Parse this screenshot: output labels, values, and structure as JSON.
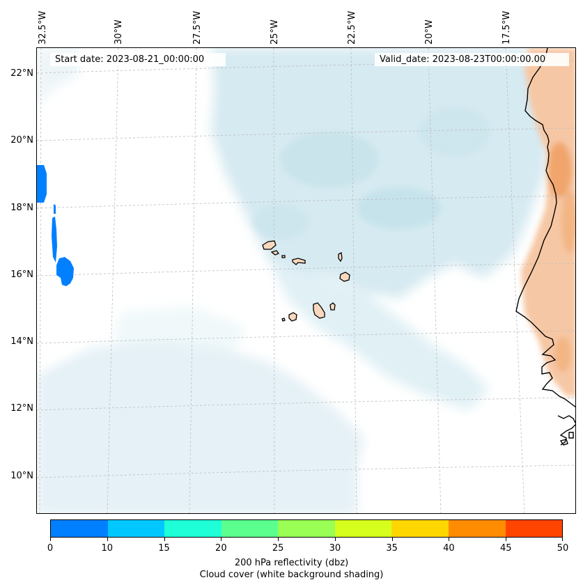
{
  "map": {
    "start_label": "Start date: 2023-08-21_00:00:00",
    "valid_label": "Valid_date: 2023-08-23T00:00:00.00",
    "lon_labels": [
      "32.5°W",
      "30°W",
      "27.5°W",
      "25°W",
      "22.5°W",
      "20°W",
      "17.5°W"
    ],
    "lat_labels": [
      "22°N",
      "20°N",
      "18°N",
      "16°N",
      "14°N",
      "12°N",
      "10°N"
    ]
  },
  "colorbar": {
    "ticks": [
      "0",
      "10",
      "15",
      "20",
      "25",
      "30",
      "35",
      "40",
      "45",
      "50"
    ],
    "colors": [
      "#0080ff",
      "#00c8ff",
      "#1effd8",
      "#5bff8d",
      "#99ff55",
      "#d7ff1d",
      "#ffd700",
      "#ff8c00",
      "#ff4500"
    ],
    "label_line1": "200 hPa reflectivity (dbz)",
    "label_line2": "Cloud cover (white background shading)"
  }
}
